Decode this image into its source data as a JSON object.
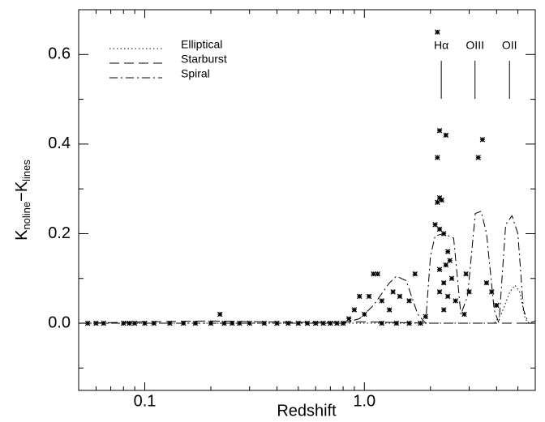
{
  "chart_data": {
    "type": "line",
    "xlabel": "Redshift",
    "ylabel": {
      "main": "K",
      "sub1": "noline",
      "mid": "−K",
      "sub2": "lines"
    },
    "xlim": [
      0.05,
      6
    ],
    "ylim": [
      -0.15,
      0.7
    ],
    "xscale": "log",
    "xticks": [
      0.1,
      {
        "value": 1,
        "label": "1.0"
      }
    ],
    "xminorticks": [
      0.05,
      0.06,
      0.07,
      0.08,
      0.09,
      0.2,
      0.3,
      0.4,
      0.5,
      0.6,
      0.7,
      0.8,
      0.9,
      2,
      3,
      4,
      5,
      6
    ],
    "yticks": [
      {
        "value": 0,
        "label": "0.0"
      },
      0.2,
      0.4,
      0.6
    ],
    "yminorticks": [
      -0.1,
      0.1,
      0.3,
      0.5
    ],
    "legend": "upper left",
    "annotations": [
      {
        "text": "Hα",
        "x": 2.24
      },
      {
        "text": "OIII",
        "x": 3.19
      },
      {
        "text": "OII",
        "x": 4.58
      }
    ],
    "series": [
      {
        "name": "Elliptical",
        "type": "line",
        "dash": "dotted",
        "color": "#000",
        "x": [
          0.05,
          3.9,
          4.2,
          4.6,
          4.85,
          5.1,
          5.4,
          5.6,
          6
        ],
        "values": [
          0,
          0,
          0.02,
          0.07,
          0.085,
          0.07,
          0.01,
          0,
          0
        ]
      },
      {
        "name": "Starburst",
        "type": "line",
        "dash": "dashed",
        "color": "#000",
        "x": [
          0.05,
          0.1,
          0.2,
          0.5,
          1,
          2,
          5.6,
          6
        ],
        "values": [
          0,
          0.003,
          0.005,
          0.002,
          0.003,
          0,
          0,
          0.005
        ]
      },
      {
        "name": "Spiral",
        "type": "line",
        "dash": "dashdot",
        "color": "#000",
        "x": [
          0.05,
          0.8,
          0.95,
          1.1,
          1.3,
          1.4,
          1.55,
          1.75,
          1.9,
          2.0,
          2.1,
          2.3,
          2.55,
          2.75,
          2.95,
          3.2,
          3.4,
          3.6,
          3.9,
          4.1,
          4.4,
          4.7,
          5.0,
          5.3,
          5.6,
          6
        ],
        "values": [
          0,
          0,
          0.01,
          0.04,
          0.09,
          0.105,
          0.095,
          0.02,
          0,
          0.15,
          0.195,
          0.2,
          0.19,
          0.02,
          0.06,
          0.245,
          0.25,
          0.2,
          0.03,
          0,
          0.22,
          0.24,
          0.2,
          0.03,
          0,
          0
        ]
      },
      {
        "type": "scatter",
        "color": "#000",
        "x": [
          2.15,
          2.2,
          2.35,
          2.15,
          3.45,
          3.3,
          2.2,
          2.25,
          2.15,
          2.1,
          2.2,
          2.3,
          2.4,
          2.45,
          2.35,
          2.2,
          2.5,
          2.3,
          2.2,
          2.4,
          2.6,
          2.3,
          2.9,
          3.0,
          2.85,
          3.8,
          4.0,
          3.6,
          1.1,
          1.15,
          1.05,
          0.95,
          1.2,
          1.35,
          1.45,
          1.3,
          1.6,
          1.7,
          1.9,
          0.9,
          1.0,
          0.22,
          0.85,
          0.055,
          0.06,
          0.065,
          0.08,
          0.085,
          0.09,
          0.1,
          0.11,
          0.13,
          0.15,
          0.17,
          0.2,
          0.23,
          0.25,
          0.27,
          0.3,
          0.35,
          0.4,
          0.45,
          0.5,
          0.55,
          0.6,
          0.65,
          0.7,
          0.75,
          0.8,
          1.2,
          1.4,
          1.6,
          1.8
        ],
        "values": [
          0.65,
          0.43,
          0.42,
          0.37,
          0.41,
          0.37,
          0.28,
          0.275,
          0.27,
          0.22,
          0.21,
          0.2,
          0.16,
          0.14,
          0.13,
          0.12,
          0.1,
          0.09,
          0.07,
          0.06,
          0.05,
          0.03,
          0.11,
          0.07,
          0.02,
          0.07,
          0.04,
          0.09,
          0.11,
          0.11,
          0.06,
          0.06,
          0.05,
          0.07,
          0.06,
          0.03,
          0.05,
          0.11,
          0.015,
          0.03,
          0.02,
          0.02,
          0.01,
          0,
          0,
          0,
          0,
          0,
          0,
          0,
          0,
          0,
          0,
          0,
          0,
          0,
          0,
          0,
          0,
          0,
          0,
          0,
          0,
          0,
          0,
          0,
          0,
          0,
          0,
          0,
          0,
          0,
          0
        ]
      }
    ]
  }
}
